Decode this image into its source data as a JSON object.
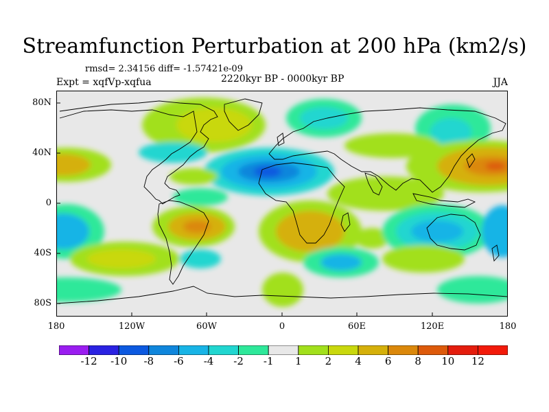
{
  "title": "Streamfunction Perturbation at 200 hPa (km2/s)",
  "stats": "rmsd= 2.34156 diff= -1.57421e-09",
  "expt": "Expt = xqfVp-xqfua",
  "period": "2220kyr BP - 0000kyr BP",
  "season": "JJA",
  "y_ticks": [
    "80N",
    "40N",
    "0",
    "40S",
    "80S"
  ],
  "x_ticks": [
    "180",
    "120W",
    "60W",
    "0",
    "60E",
    "120E",
    "180"
  ],
  "legend": {
    "labels": [
      "-12",
      "-10",
      "-8",
      "-6",
      "-4",
      "-2",
      "-1",
      "1",
      "2",
      "4",
      "6",
      "8",
      "10",
      "12"
    ],
    "colors": [
      "#9a1df0",
      "#2a22e2",
      "#0c59e0",
      "#0f86dc",
      "#18b4e6",
      "#21d6d0",
      "#2ee89a",
      "#e8e8e8",
      "#a2e01c",
      "#c9d80d",
      "#d5b00a",
      "#db880b",
      "#dd5a0b",
      "#e41d0d",
      "#f21a0a"
    ]
  },
  "colors": {
    "background": "#e8e8e8",
    "coast": "#000000"
  }
}
